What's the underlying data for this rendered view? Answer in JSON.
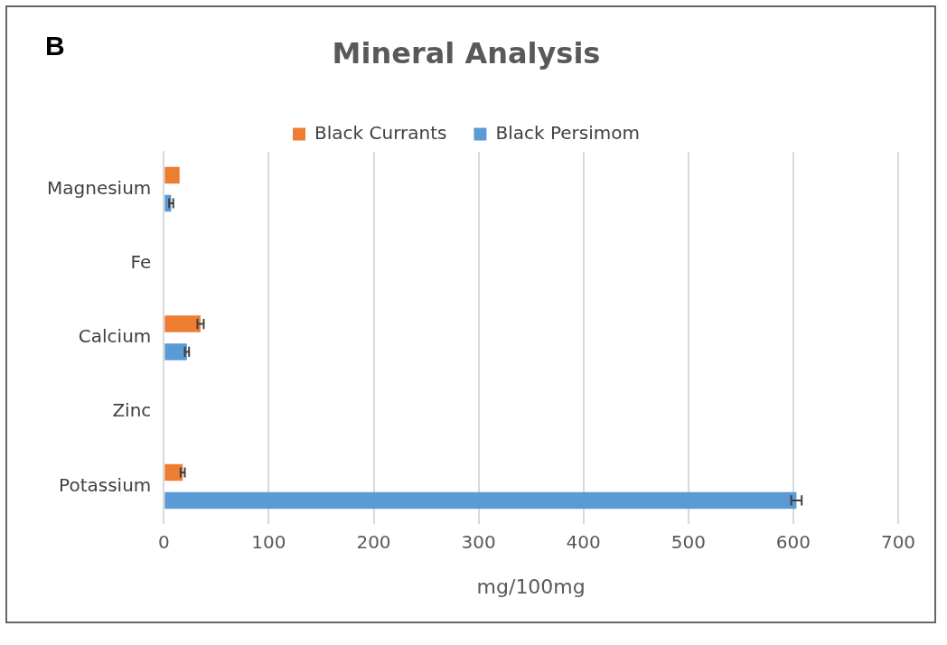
{
  "chart_data": {
    "type": "bar",
    "orientation": "horizontal",
    "title": "Mineral Analysis",
    "xlabel": "mg/100mg",
    "annotations": [
      "B"
    ],
    "categories": [
      "Magnesium",
      "Fe",
      "Calcium",
      "Zinc",
      "Potassium"
    ],
    "series": [
      {
        "name": "Black Currants",
        "color": "#ed7d31",
        "values": [
          15,
          null,
          35,
          null,
          18
        ],
        "errors": [
          null,
          null,
          3,
          null,
          2
        ]
      },
      {
        "name": "Black Persimom",
        "color": "#5b9bd5",
        "values": [
          7,
          null,
          22,
          null,
          603
        ],
        "errors": [
          2,
          null,
          2,
          null,
          5
        ]
      }
    ],
    "xlim": [
      0,
      700
    ],
    "xticks": [
      0,
      100,
      200,
      300,
      400,
      500,
      600,
      700
    ],
    "grid": "x",
    "legend": "top"
  }
}
